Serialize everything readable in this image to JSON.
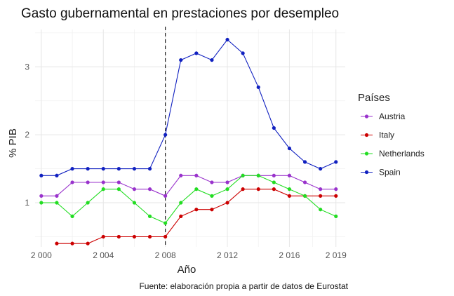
{
  "chart_data": {
    "type": "line",
    "title": "Gasto gubernamental en prestaciones por desempleo",
    "xlabel": "Año",
    "ylabel": "% PIB",
    "caption": "Fuente: elaboración propia a partir de datos de Eurostat",
    "xlim": [
      1999.6,
      2019.6
    ],
    "ylim": [
      0.35,
      3.55
    ],
    "x_ticks": [
      2000,
      2004,
      2008,
      2012,
      2016,
      2019
    ],
    "x_tick_labels": [
      "2 000",
      "2 004",
      "2 008",
      "2 012",
      "2 016",
      "2 019"
    ],
    "y_ticks": [
      1,
      2,
      3
    ],
    "y_tick_labels": [
      "1",
      "2",
      "3"
    ],
    "grid": true,
    "reference_line": {
      "x": 2008,
      "style": "dashed"
    },
    "legend": {
      "title": "Países",
      "position": "right"
    },
    "x": [
      2000,
      2001,
      2002,
      2003,
      2004,
      2005,
      2006,
      2007,
      2008,
      2009,
      2010,
      2011,
      2012,
      2013,
      2014,
      2015,
      2016,
      2017,
      2018,
      2019
    ],
    "series": [
      {
        "name": "Austria",
        "color": "#9932CC",
        "values": [
          1.1,
          1.1,
          1.3,
          1.3,
          1.3,
          1.3,
          1.2,
          1.2,
          1.1,
          1.4,
          1.4,
          1.3,
          1.3,
          1.4,
          1.4,
          1.4,
          1.4,
          1.3,
          1.2,
          1.2
        ]
      },
      {
        "name": "Italy",
        "color": "#CC0000",
        "values": [
          null,
          0.4,
          0.4,
          0.4,
          0.5,
          0.5,
          0.5,
          0.5,
          0.5,
          0.8,
          0.9,
          0.9,
          1.0,
          1.2,
          1.2,
          1.2,
          1.1,
          1.1,
          1.1,
          1.1
        ]
      },
      {
        "name": "Netherlands",
        "color": "#22DD22",
        "values": [
          1.0,
          1.0,
          0.8,
          1.0,
          1.2,
          1.2,
          1.0,
          0.8,
          0.7,
          1.0,
          1.2,
          1.1,
          1.2,
          1.4,
          1.4,
          1.3,
          1.2,
          1.1,
          0.9,
          0.8
        ]
      },
      {
        "name": "Spain",
        "color": "#1020C0",
        "values": [
          1.4,
          1.4,
          1.5,
          1.5,
          1.5,
          1.5,
          1.5,
          1.5,
          2.0,
          3.1,
          3.2,
          3.1,
          3.4,
          3.2,
          2.7,
          2.1,
          1.8,
          1.6,
          1.5,
          1.6
        ]
      }
    ]
  }
}
